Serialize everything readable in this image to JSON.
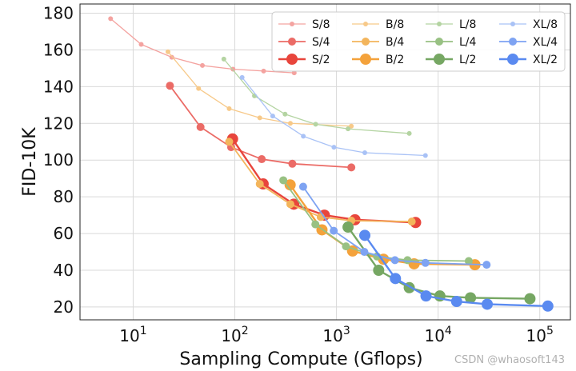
{
  "chart_data": {
    "type": "line",
    "title": "",
    "xlabel": "Sampling Compute (Gflops)",
    "ylabel": "FID-10K",
    "xscale": "log",
    "xlim": [
      3,
      200000
    ],
    "ylim": [
      13,
      185
    ],
    "grid": true,
    "legend_position": "top-right",
    "x_ticks": [
      {
        "value": 10,
        "base": "10",
        "exp": "1"
      },
      {
        "value": 100,
        "base": "10",
        "exp": "2"
      },
      {
        "value": 1000,
        "base": "10",
        "exp": "3"
      },
      {
        "value": 10000,
        "base": "10",
        "exp": "4"
      },
      {
        "value": 100000,
        "base": "10",
        "exp": "5"
      }
    ],
    "y_ticks": [
      "20",
      "40",
      "60",
      "80",
      "100",
      "120",
      "140",
      "160",
      "180"
    ],
    "series": [
      {
        "name": "S/8",
        "color": "#f4a3a0",
        "size": 1,
        "x": [
          6,
          12,
          24,
          48,
          96,
          192,
          384
        ],
        "y": [
          177,
          163,
          156,
          151.5,
          149.5,
          148.5,
          147.5
        ]
      },
      {
        "name": "S/4",
        "color": "#eb6b66",
        "size": 2,
        "x": [
          23,
          46,
          92,
          184,
          368,
          1400
        ],
        "y": [
          140.5,
          118,
          107,
          100.5,
          98,
          96
        ]
      },
      {
        "name": "S/2",
        "color": "#e8453c",
        "size": 3,
        "x": [
          95,
          190,
          380,
          760,
          1520,
          6000
        ],
        "y": [
          111.5,
          87,
          76,
          70,
          67.5,
          66
        ]
      },
      {
        "name": "B/8",
        "color": "#f7c989",
        "size": 1,
        "x": [
          22,
          44,
          88,
          176,
          352,
          1400
        ],
        "y": [
          159,
          139,
          128,
          123,
          120,
          118.5
        ]
      },
      {
        "name": "B/4",
        "color": "#f3b55c",
        "size": 2,
        "x": [
          88,
          176,
          352,
          700,
          1400,
          5500
        ],
        "y": [
          110,
          87,
          76,
          69,
          67,
          66.5
        ]
      },
      {
        "name": "B/2",
        "color": "#f4a23b",
        "size": 3,
        "x": [
          350,
          720,
          1440,
          2900,
          5800,
          23000
        ],
        "y": [
          86.5,
          62,
          50.5,
          46,
          43.5,
          43
        ]
      },
      {
        "name": "L/8",
        "color": "#b4d4a2",
        "size": 1,
        "x": [
          78,
          156,
          312,
          624,
          1300,
          5200
        ],
        "y": [
          155,
          135,
          125,
          119.5,
          117,
          114.5
        ]
      },
      {
        "name": "L/4",
        "color": "#98c183",
        "size": 2,
        "x": [
          300,
          620,
          1240,
          2500,
          5000,
          20000
        ],
        "y": [
          89,
          65,
          53,
          47.5,
          45.5,
          45
        ]
      },
      {
        "name": "L/2",
        "color": "#76a763",
        "size": 3,
        "x": [
          1300,
          2600,
          5200,
          10400,
          20800,
          80000
        ],
        "y": [
          63.5,
          40,
          30.5,
          26,
          25,
          24.5
        ]
      },
      {
        "name": "XL/8",
        "color": "#a9c2f6",
        "size": 1,
        "x": [
          118,
          236,
          472,
          944,
          1900,
          7500
        ],
        "y": [
          145,
          124,
          113,
          107,
          104,
          102.5
        ]
      },
      {
        "name": "XL/4",
        "color": "#7ea3f2",
        "size": 2,
        "x": [
          470,
          940,
          1880,
          3760,
          7500,
          30000
        ],
        "y": [
          85.5,
          61.5,
          50,
          45.5,
          44,
          43
        ]
      },
      {
        "name": "XL/2",
        "color": "#5a8af0",
        "size": 3,
        "x": [
          1900,
          3800,
          7600,
          15200,
          30400,
          120000
        ],
        "y": [
          59,
          35.5,
          26,
          23,
          21.5,
          20.5
        ]
      }
    ]
  },
  "watermark": "CSDN @whaosoft143"
}
